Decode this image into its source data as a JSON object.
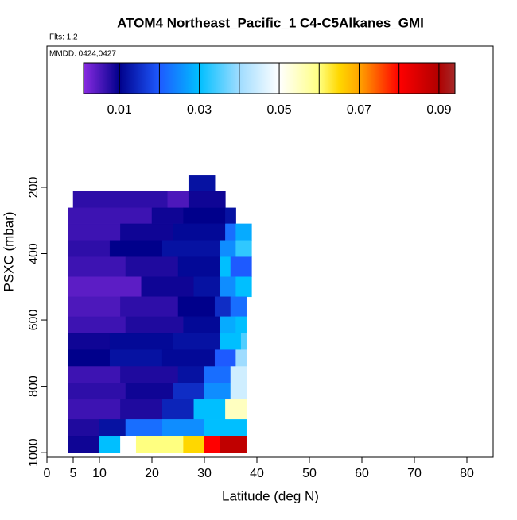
{
  "chart_data": {
    "type": "curtain",
    "title": "ATOM4 Northeast_Pacific_1 C4-C5Alkanes_GMI",
    "annotations": [
      "Flts: 1,2",
      "MMDD: 0424,0427"
    ],
    "xlabel": "Latitude (deg N)",
    "ylabel": "PSXC (mbar)",
    "xlim": [
      0,
      85
    ],
    "xticks": [
      0,
      5,
      10,
      20,
      30,
      40,
      50,
      60,
      70,
      80
    ],
    "ylim": [
      1014,
      -226
    ],
    "yticks": [
      200,
      400,
      600,
      800,
      1000
    ],
    "colorbar": {
      "lim": [
        0.001,
        0.094
      ],
      "breaks": [
        0.01,
        0.02,
        0.03,
        0.04,
        0.05,
        0.06,
        0.07,
        0.08,
        0.09
      ],
      "ticks": [
        0.01,
        0.03,
        0.05,
        0.07,
        0.09
      ],
      "colorscale": [
        [
          0.001,
          "#8a2be2"
        ],
        [
          0.01,
          "#00008b"
        ],
        [
          0.02,
          "#1e5aff"
        ],
        [
          0.03,
          "#00bfff"
        ],
        [
          0.04,
          "#9fdcff"
        ],
        [
          0.05,
          "#ffffff"
        ],
        [
          0.06,
          "#ffff80"
        ],
        [
          0.065,
          "#ffd700"
        ],
        [
          0.07,
          "#ffa500"
        ],
        [
          0.08,
          "#ff0000"
        ],
        [
          0.09,
          "#b00000"
        ],
        [
          0.094,
          "#a52a2a"
        ]
      ]
    },
    "rows": [
      {
        "p": [
          165,
          215
        ],
        "segments": [
          [
            27,
            32,
            0.012
          ]
        ]
      },
      {
        "p": [
          212,
          262
        ],
        "segments": [
          [
            5,
            23,
            0.007
          ],
          [
            23,
            27,
            0.005
          ],
          [
            27,
            34,
            0.009
          ]
        ]
      },
      {
        "p": [
          262,
          310
        ],
        "segments": [
          [
            4,
            20,
            0.006
          ],
          [
            20,
            26,
            0.009
          ],
          [
            26,
            34,
            0.01
          ],
          [
            34,
            36,
            0.012
          ]
        ]
      },
      {
        "p": [
          310,
          360
        ],
        "segments": [
          [
            4,
            14,
            0.006
          ],
          [
            14,
            24,
            0.009
          ],
          [
            24,
            34,
            0.011
          ],
          [
            34,
            36,
            0.022
          ],
          [
            36,
            39,
            0.028
          ]
        ]
      },
      {
        "p": [
          360,
          410
        ],
        "segments": [
          [
            4,
            12,
            0.007
          ],
          [
            12,
            22,
            0.01
          ],
          [
            22,
            33,
            0.012
          ],
          [
            33,
            36,
            0.025
          ],
          [
            36,
            39,
            0.033
          ]
        ]
      },
      {
        "p": [
          410,
          470
        ],
        "segments": [
          [
            4,
            15,
            0.006
          ],
          [
            15,
            25,
            0.008
          ],
          [
            25,
            33,
            0.011
          ],
          [
            33,
            35,
            0.03
          ],
          [
            35,
            39,
            0.02
          ]
        ]
      },
      {
        "p": [
          470,
          530
        ],
        "segments": [
          [
            4,
            18,
            0.004
          ],
          [
            18,
            28,
            0.009
          ],
          [
            28,
            33,
            0.012
          ],
          [
            33,
            36,
            0.025
          ],
          [
            36,
            39,
            0.03
          ]
        ]
      },
      {
        "p": [
          530,
          590
        ],
        "segments": [
          [
            4,
            14,
            0.005
          ],
          [
            14,
            25,
            0.007
          ],
          [
            25,
            32,
            0.01
          ],
          [
            32,
            35,
            0.015
          ],
          [
            35,
            38,
            0.022
          ]
        ]
      },
      {
        "p": [
          590,
          640
        ],
        "segments": [
          [
            4,
            15,
            0.006
          ],
          [
            15,
            26,
            0.008
          ],
          [
            26,
            33,
            0.011
          ],
          [
            33,
            36,
            0.028
          ],
          [
            36,
            38,
            0.03
          ]
        ]
      },
      {
        "p": [
          640,
          690
        ],
        "segments": [
          [
            4,
            12,
            0.009
          ],
          [
            12,
            24,
            0.011
          ],
          [
            24,
            33,
            0.012
          ],
          [
            33,
            37,
            0.03
          ],
          [
            37,
            38,
            0.035
          ]
        ]
      },
      {
        "p": [
          690,
          740
        ],
        "segments": [
          [
            4,
            12,
            0.01
          ],
          [
            12,
            22,
            0.012
          ],
          [
            22,
            32,
            0.011
          ],
          [
            32,
            36,
            0.02
          ],
          [
            36,
            38,
            0.04
          ]
        ]
      },
      {
        "p": [
          740,
          790
        ],
        "segments": [
          [
            4,
            14,
            0.006
          ],
          [
            14,
            25,
            0.008
          ],
          [
            25,
            30,
            0.012
          ],
          [
            30,
            35,
            0.022
          ],
          [
            35,
            38,
            0.045
          ]
        ]
      },
      {
        "p": [
          790,
          840
        ],
        "segments": [
          [
            4,
            15,
            0.007
          ],
          [
            15,
            24,
            0.009
          ],
          [
            24,
            30,
            0.015
          ],
          [
            30,
            35,
            0.025
          ],
          [
            35,
            38,
            0.045
          ]
        ]
      },
      {
        "p": [
          840,
          900
        ],
        "segments": [
          [
            4,
            14,
            0.006
          ],
          [
            14,
            22,
            0.008
          ],
          [
            22,
            28,
            0.014
          ],
          [
            28,
            34,
            0.03
          ],
          [
            34,
            38,
            0.055
          ]
        ]
      },
      {
        "p": [
          900,
          950
        ],
        "segments": [
          [
            4,
            10,
            0.008
          ],
          [
            10,
            15,
            0.012
          ],
          [
            15,
            22,
            0.022
          ],
          [
            22,
            30,
            0.025
          ],
          [
            30,
            38,
            0.03
          ]
        ]
      },
      {
        "p": [
          950,
          1000
        ],
        "segments": [
          [
            4,
            10,
            0.009
          ],
          [
            10,
            14,
            0.03
          ],
          [
            14,
            17,
            0.05
          ],
          [
            17,
            26,
            0.06
          ],
          [
            26,
            30,
            0.065
          ],
          [
            30,
            33,
            0.08
          ],
          [
            33,
            38,
            0.088
          ]
        ]
      }
    ]
  }
}
